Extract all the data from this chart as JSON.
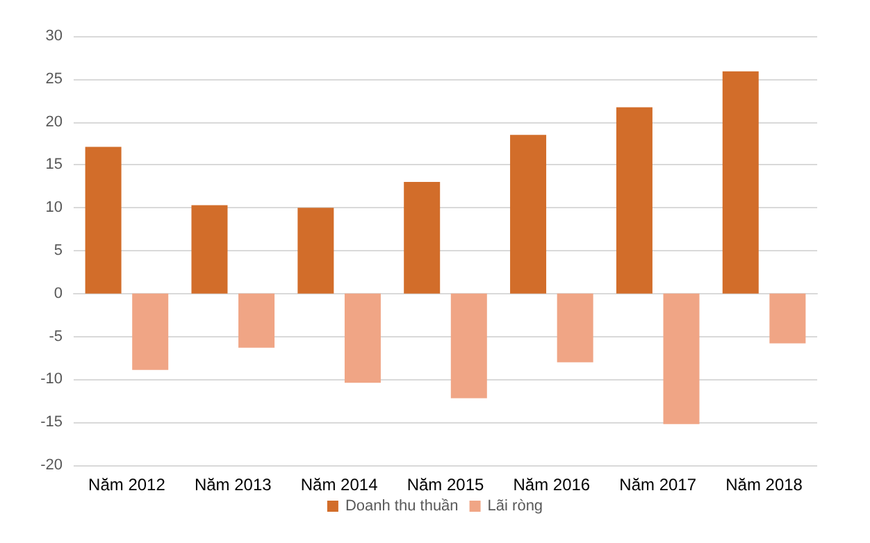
{
  "chart_data": {
    "type": "bar",
    "categories": [
      "Năm 2012",
      "Năm 2013",
      "Năm 2014",
      "Năm 2015",
      "Năm 2016",
      "Năm 2017",
      "Năm 2018"
    ],
    "series": [
      {
        "name": "Doanh thu thuần",
        "color": "#d26d2a",
        "values": [
          17.1,
          10.3,
          10.0,
          13.0,
          18.5,
          21.7,
          25.9
        ]
      },
      {
        "name": "Lãi ròng",
        "color": "#f0a585",
        "values": [
          -8.9,
          -6.3,
          -10.4,
          -12.2,
          -8.0,
          -15.2,
          -5.8
        ]
      }
    ],
    "ylim": [
      -20,
      30
    ],
    "yticks": [
      -20,
      -15,
      -10,
      -5,
      0,
      5,
      10,
      15,
      20,
      25,
      30
    ],
    "grid": "y",
    "legend": "bottom"
  }
}
